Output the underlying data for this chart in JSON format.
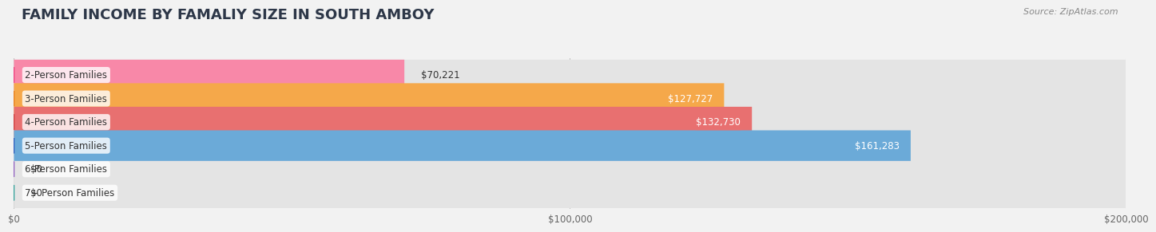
{
  "title": "FAMILY INCOME BY FAMALIY SIZE IN SOUTH AMBOY",
  "source": "Source: ZipAtlas.com",
  "categories": [
    "2-Person Families",
    "3-Person Families",
    "4-Person Families",
    "5-Person Families",
    "6-Person Families",
    "7+ Person Families"
  ],
  "values": [
    70221,
    127727,
    132730,
    161283,
    0,
    0
  ],
  "bar_colors": [
    "#F888A8",
    "#F5A84A",
    "#E87070",
    "#6BAAD8",
    "#C9A8E0",
    "#70C8C0"
  ],
  "dot_colors": [
    "#F04080",
    "#E88020",
    "#D04040",
    "#3060C0",
    "#9060C0",
    "#30A098"
  ],
  "value_labels": [
    "$70,221",
    "$127,727",
    "$132,730",
    "$161,283",
    "$0",
    "$0"
  ],
  "value_inside": [
    false,
    true,
    true,
    true,
    false,
    false
  ],
  "xlim": [
    0,
    200000
  ],
  "xtick_values": [
    0,
    100000,
    200000
  ],
  "xtick_labels": [
    "$0",
    "$100,000",
    "$200,000"
  ],
  "background_color": "#F2F2F2",
  "bar_background_color": "#E4E4E4",
  "title_color": "#2D3748",
  "label_color": "#333333",
  "source_color": "#888888",
  "bar_height": 0.65,
  "title_fontsize": 13,
  "label_fontsize": 8.5,
  "value_fontsize": 8.5,
  "tick_fontsize": 8.5
}
